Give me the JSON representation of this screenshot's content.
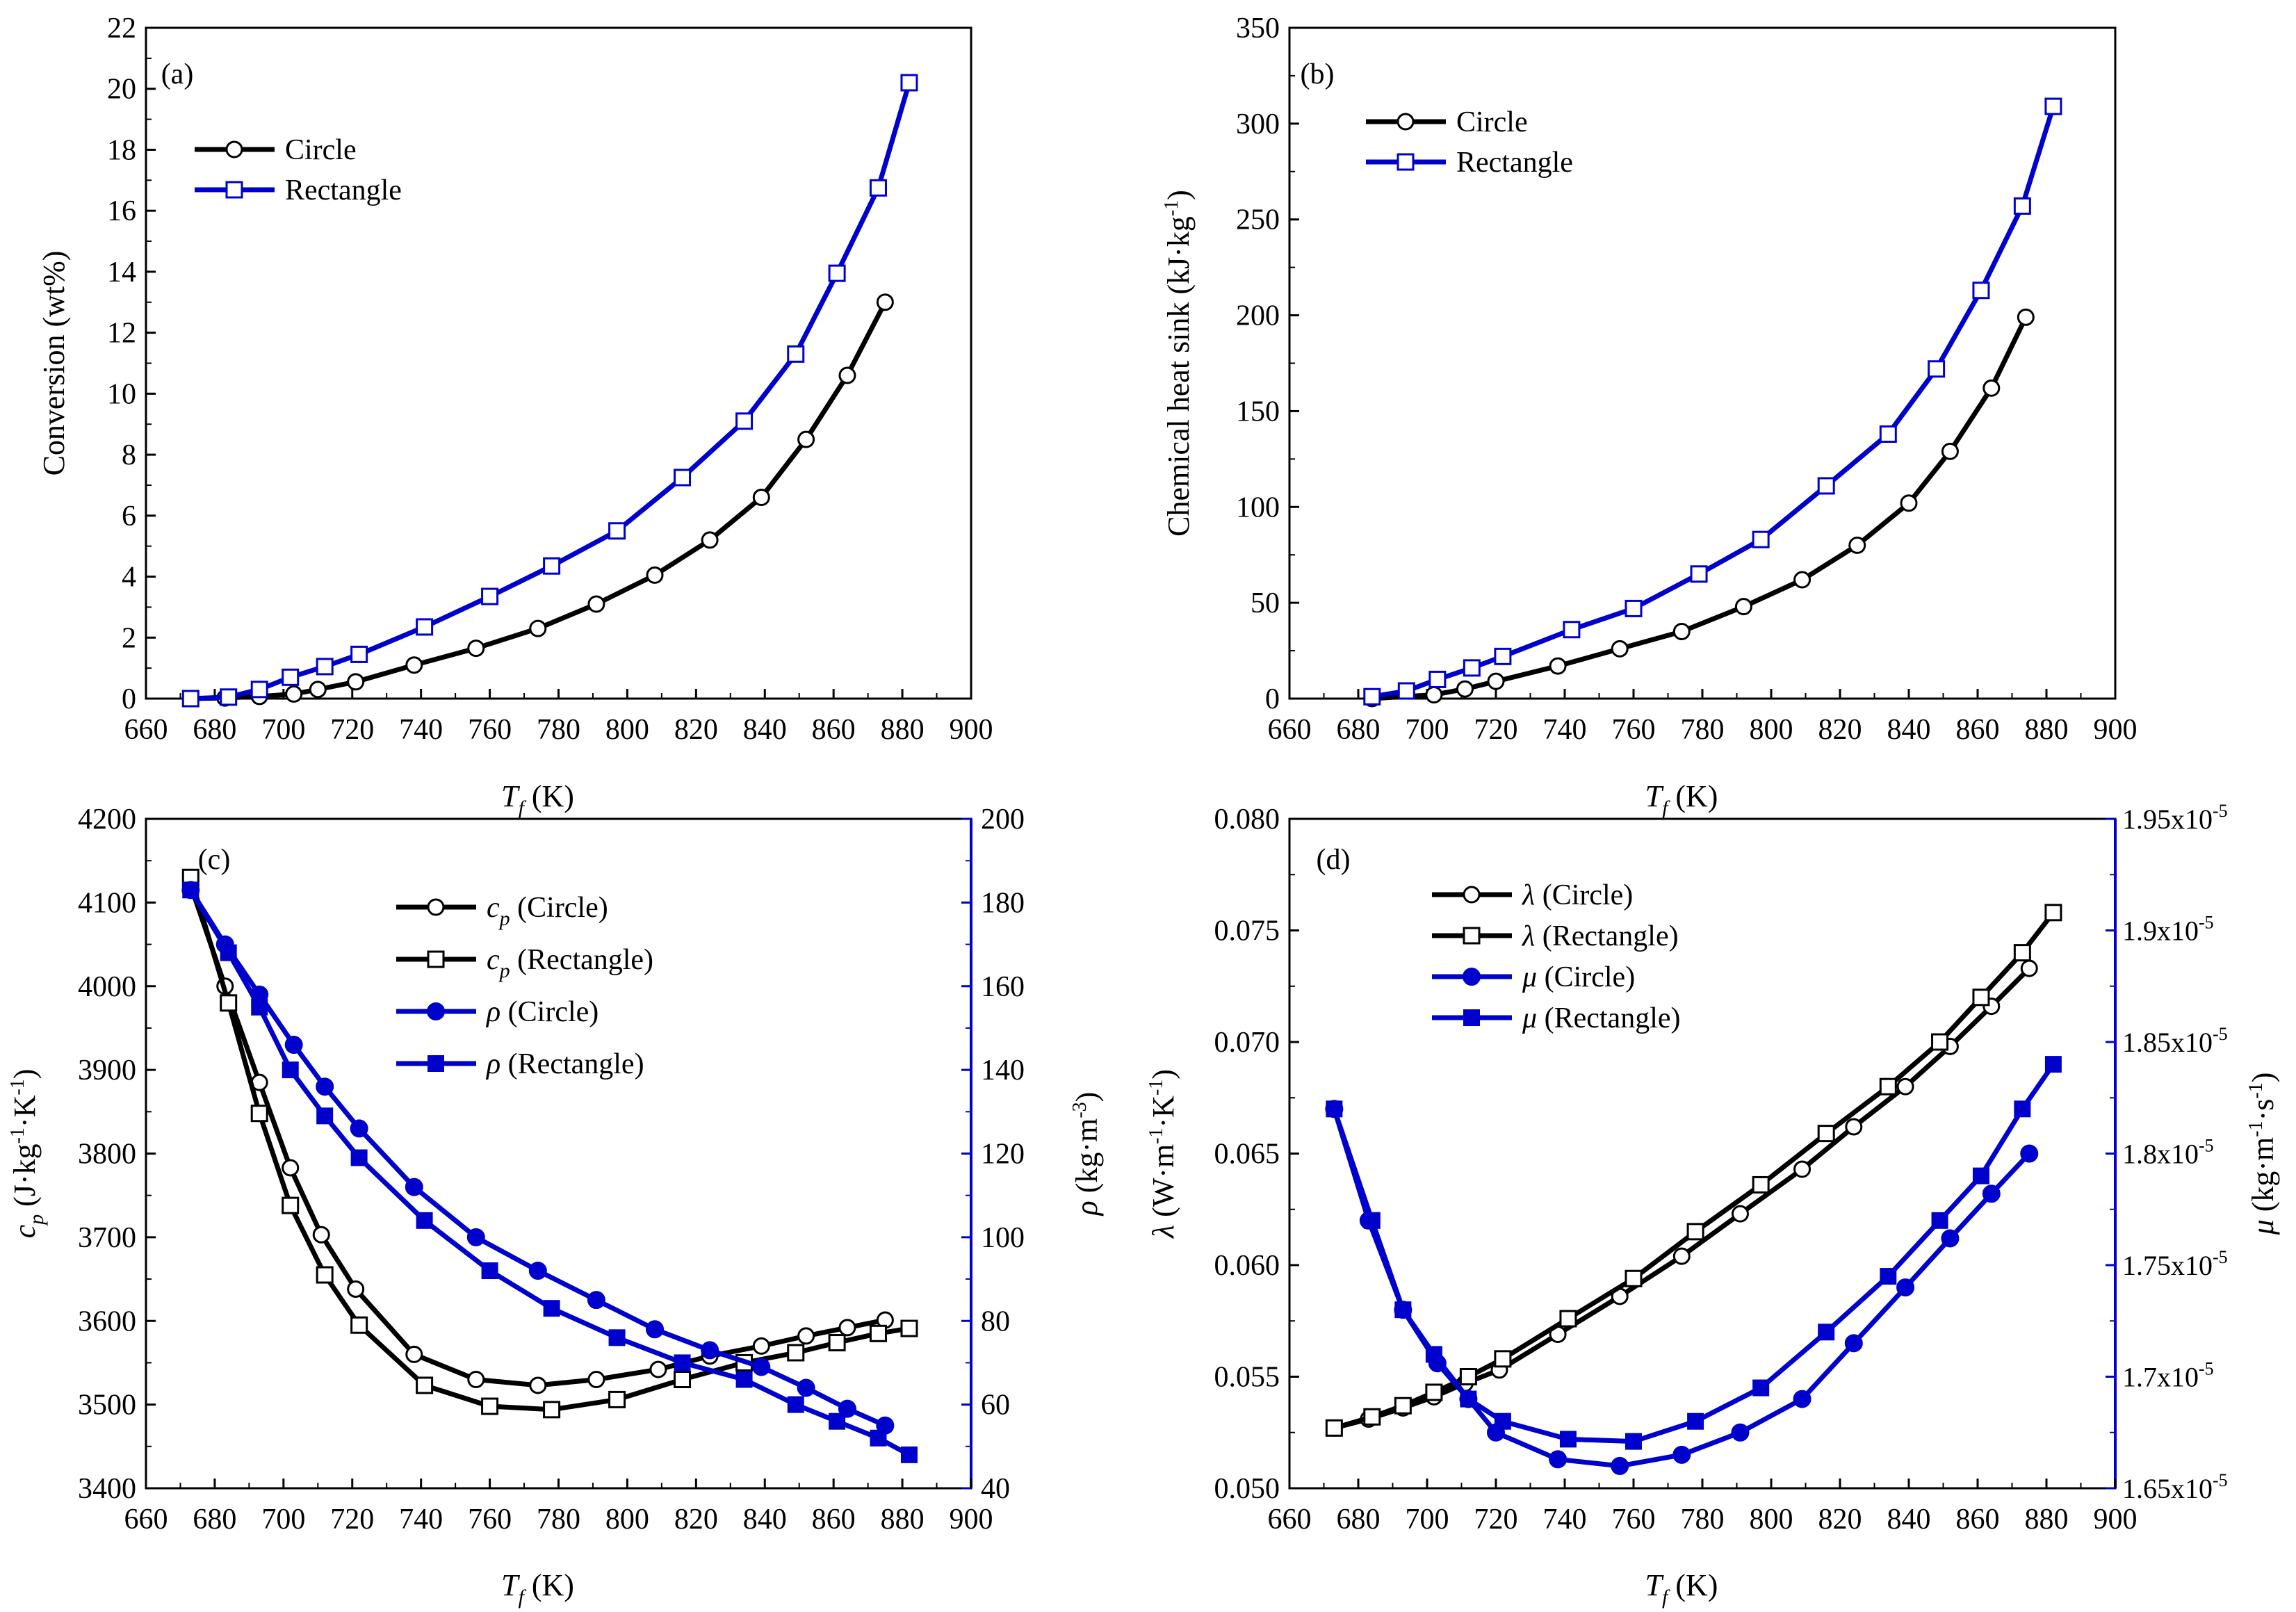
{
  "colors": {
    "black": "#000000",
    "blue": "#0000CC"
  },
  "chart_data": [
    {
      "id": "a",
      "type": "line",
      "panel_label": "(a)",
      "ylabel": "Conversion (wt%)",
      "xlabel": {
        "main": "T",
        "sub": "f",
        "unit": "(K)"
      },
      "x_ticks": [
        "660",
        "680",
        "700",
        "720",
        "740",
        "760",
        "780",
        "800",
        "820",
        "840",
        "860",
        "880",
        "900"
      ],
      "y_ticks": [
        "0",
        "2",
        "4",
        "6",
        "8",
        "10",
        "12",
        "14",
        "16",
        "18",
        "20",
        "22"
      ],
      "xlim": [
        660,
        900
      ],
      "ylim": [
        0,
        22
      ],
      "legend": [
        "Circle",
        "Rectangle"
      ],
      "series": [
        {
          "name": "Circle",
          "color": "#000000",
          "marker": "circle-open",
          "axis": "left",
          "x": [
            673,
            683,
            693,
            703,
            710,
            721,
            738,
            756,
            774,
            791,
            808,
            824,
            839,
            852,
            864,
            875
          ],
          "y": [
            0,
            0.02,
            0.07,
            0.15,
            0.3,
            0.55,
            1.1,
            1.65,
            2.3,
            3.1,
            4.05,
            5.2,
            6.6,
            8.5,
            10.6,
            13.0
          ]
        },
        {
          "name": "Rectangle",
          "color": "#0000CC",
          "marker": "square-open",
          "axis": "left",
          "x": [
            673,
            684,
            693,
            702,
            712,
            722,
            741,
            760,
            778,
            797,
            816,
            834,
            849,
            861,
            873,
            882
          ],
          "y": [
            0,
            0.05,
            0.3,
            0.7,
            1.05,
            1.45,
            2.35,
            3.35,
            4.35,
            5.5,
            7.25,
            9.1,
            11.3,
            13.95,
            16.75,
            20.2
          ]
        }
      ]
    },
    {
      "id": "b",
      "type": "line",
      "panel_label": "(b)",
      "ylabel": "Chemical heat sink  (kJ·kg",
      "ylabel_sup": "-1",
      "ylabel_end": ")",
      "xlabel": {
        "main": "T",
        "sub": "f",
        "unit": "(K)"
      },
      "x_ticks": [
        "660",
        "680",
        "700",
        "720",
        "740",
        "760",
        "780",
        "800",
        "820",
        "840",
        "860",
        "880",
        "900"
      ],
      "y_ticks": [
        "0",
        "50",
        "100",
        "150",
        "200",
        "250",
        "300",
        "350"
      ],
      "xlim": [
        660,
        900
      ],
      "ylim": [
        0,
        350
      ],
      "legend": [
        "Circle",
        "Rectangle"
      ],
      "series": [
        {
          "name": "Circle",
          "color": "#000000",
          "marker": "circle-open",
          "axis": "left",
          "x": [
            684,
            702,
            711,
            720,
            738,
            756,
            774,
            792,
            809,
            825,
            840,
            852,
            864,
            874
          ],
          "y": [
            0,
            2,
            5,
            9,
            17,
            26,
            35,
            48,
            62,
            80,
            102,
            129,
            162,
            199
          ]
        },
        {
          "name": "Rectangle",
          "color": "#0000CC",
          "marker": "square-open",
          "axis": "left",
          "x": [
            684,
            694,
            703,
            713,
            722,
            742,
            760,
            779,
            797,
            816,
            834,
            848,
            861,
            873,
            882
          ],
          "y": [
            1,
            4,
            10,
            16,
            22,
            36,
            47,
            65,
            83,
            111,
            138,
            172,
            213,
            257,
            309
          ]
        }
      ]
    },
    {
      "id": "c",
      "type": "line",
      "panel_label": "(c)",
      "ylabel": {
        "main": "c",
        "sub": "p",
        "rest": "  (J·kg",
        "sup1": "-1",
        "mid": "·K",
        "sup2": "-1",
        "end": ")"
      },
      "y2label": {
        "main": "ρ",
        "rest": "  (kg·m",
        "sup": "-3",
        "end": ")"
      },
      "xlabel": {
        "main": "T",
        "sub": "f",
        "unit": "(K)"
      },
      "x_ticks": [
        "660",
        "680",
        "700",
        "720",
        "740",
        "760",
        "780",
        "800",
        "820",
        "840",
        "860",
        "880",
        "900"
      ],
      "y_ticks": [
        "3400",
        "3500",
        "3600",
        "3700",
        "3800",
        "3900",
        "4000",
        "4100",
        "4200"
      ],
      "y2_ticks": [
        "40",
        "60",
        "80",
        "100",
        "120",
        "140",
        "160",
        "180",
        "200"
      ],
      "xlim": [
        660,
        900
      ],
      "ylim": [
        3400,
        4200
      ],
      "y2lim": [
        40,
        200
      ],
      "legend": [
        {
          "sym": "c",
          "sub": "p",
          "text": " (Circle)"
        },
        {
          "sym": "c",
          "sub": "p",
          "text": " (Rectangle)"
        },
        {
          "sym": "ρ",
          "sub": "",
          "text": "  (Circle)"
        },
        {
          "sym": "ρ",
          "sub": "",
          "text": "  (Rectangle)"
        }
      ],
      "series": [
        {
          "name": "cp (Circle)",
          "color": "#000000",
          "marker": "circle-open",
          "axis": "left",
          "x": [
            673,
            683,
            693,
            702,
            711,
            721,
            738,
            756,
            774,
            791,
            809,
            824,
            839,
            852,
            864,
            875
          ],
          "y": [
            4120,
            4000,
            3885,
            3783,
            3703,
            3638,
            3560,
            3530,
            3523,
            3530,
            3542,
            3558,
            3570,
            3582,
            3592,
            3601
          ]
        },
        {
          "name": "cp (Rectangle)",
          "color": "#000000",
          "marker": "square-open",
          "axis": "left",
          "x": [
            673,
            684,
            693,
            702,
            712,
            722,
            741,
            760,
            778,
            797,
            816,
            834,
            849,
            861,
            873,
            882
          ],
          "y": [
            4130,
            3980,
            3848,
            3738,
            3655,
            3595,
            3523,
            3498,
            3494,
            3506,
            3530,
            3550,
            3562,
            3574,
            3585,
            3591
          ]
        },
        {
          "name": "ρ (Circle)",
          "color": "#0000CC",
          "marker": "circle-filled",
          "axis": "right",
          "x": [
            673,
            683,
            693,
            703,
            712,
            722,
            738,
            756,
            774,
            791,
            808,
            824,
            839,
            852,
            864,
            875
          ],
          "y": [
            183,
            170,
            158,
            146,
            136,
            126,
            112,
            100,
            92,
            85,
            78,
            73,
            69,
            64,
            59,
            55
          ]
        },
        {
          "name": "ρ (Rectangle)",
          "color": "#0000CC",
          "marker": "square-filled",
          "axis": "right",
          "x": [
            673,
            684,
            693,
            702,
            712,
            722,
            741,
            760,
            778,
            797,
            816,
            834,
            849,
            861,
            873,
            882
          ],
          "y": [
            183,
            168,
            155,
            140,
            129,
            119,
            104,
            92,
            83,
            76,
            70,
            66,
            60,
            56,
            52,
            48
          ]
        }
      ]
    },
    {
      "id": "d",
      "type": "line",
      "panel_label": "(d)",
      "ylabel": {
        "main": "λ",
        "rest": " (W·m",
        "sup1": "-1",
        "mid": "·K",
        "sup2": "-1",
        "end": ")"
      },
      "y2label": {
        "main": "μ",
        "rest": "  (kg·m",
        "sup1": "-1",
        "mid": "·s",
        "sup2": "-1",
        "end": ")"
      },
      "xlabel": {
        "main": "T",
        "sub": "f",
        "unit": "(K)"
      },
      "x_ticks": [
        "660",
        "680",
        "700",
        "720",
        "740",
        "760",
        "780",
        "800",
        "820",
        "840",
        "860",
        "880",
        "900"
      ],
      "y_ticks": [
        "0.050",
        "0.055",
        "0.060",
        "0.065",
        "0.070",
        "0.075",
        "0.080"
      ],
      "y2_ticks": [
        {
          "base": "1.65x10",
          "exp": "-5"
        },
        {
          "base": "1.7x10",
          "exp": "-5"
        },
        {
          "base": "1.75x10",
          "exp": "-5"
        },
        {
          "base": "1.8x10",
          "exp": "-5"
        },
        {
          "base": "1.85x10",
          "exp": "-5"
        },
        {
          "base": "1.9x10",
          "exp": "-5"
        },
        {
          "base": "1.95x10",
          "exp": "-5"
        }
      ],
      "xlim": [
        660,
        900
      ],
      "ylim": [
        0.05,
        0.08
      ],
      "y2lim": [
        1.65e-05,
        1.95e-05
      ],
      "legend": [
        {
          "sym": "λ",
          "text": " (Circle)"
        },
        {
          "sym": "λ",
          "text": " (Rectangle)"
        },
        {
          "sym": "μ",
          "text": "  (Circle)"
        },
        {
          "sym": "μ",
          "text": "  (Rectangle)"
        }
      ],
      "series": [
        {
          "name": "λ (Circle)",
          "color": "#000000",
          "marker": "circle-open",
          "axis": "left",
          "x": [
            673,
            683,
            693,
            702,
            711,
            721,
            738,
            756,
            774,
            791,
            809,
            824,
            839,
            852,
            864,
            875
          ],
          "y": [
            0.0527,
            0.0531,
            0.0536,
            0.0541,
            0.0547,
            0.0553,
            0.0569,
            0.0586,
            0.0604,
            0.0623,
            0.0643,
            0.0662,
            0.068,
            0.0698,
            0.0716,
            0.0733
          ]
        },
        {
          "name": "λ (Rectangle)",
          "color": "#000000",
          "marker": "square-open",
          "axis": "left",
          "x": [
            673,
            684,
            693,
            702,
            712,
            722,
            741,
            760,
            778,
            797,
            816,
            834,
            849,
            861,
            873,
            882
          ],
          "y": [
            0.0527,
            0.0532,
            0.0537,
            0.0543,
            0.055,
            0.0558,
            0.0576,
            0.0594,
            0.0615,
            0.0636,
            0.0659,
            0.068,
            0.07,
            0.072,
            0.074,
            0.0758
          ]
        },
        {
          "name": "μ (Circle)",
          "color": "#0000CC",
          "marker": "circle-filled",
          "axis": "right",
          "x": [
            673,
            683,
            693,
            703,
            712,
            720,
            738,
            756,
            774,
            791,
            809,
            824,
            839,
            852,
            864,
            875
          ],
          "y": [
            1.82e-05,
            1.77e-05,
            1.73e-05,
            1.706e-05,
            1.69e-05,
            1.675e-05,
            1.663e-05,
            1.66e-05,
            1.665e-05,
            1.675e-05,
            1.69e-05,
            1.715e-05,
            1.74e-05,
            1.762e-05,
            1.782e-05,
            1.8e-05
          ]
        },
        {
          "name": "μ (Rectangle)",
          "color": "#0000CC",
          "marker": "square-filled",
          "axis": "right",
          "x": [
            673,
            684,
            693,
            702,
            712,
            722,
            741,
            760,
            778,
            797,
            816,
            834,
            849,
            861,
            873,
            882
          ],
          "y": [
            1.82e-05,
            1.77e-05,
            1.73e-05,
            1.71e-05,
            1.69e-05,
            1.68e-05,
            1.672e-05,
            1.671e-05,
            1.68e-05,
            1.695e-05,
            1.72e-05,
            1.745e-05,
            1.77e-05,
            1.79e-05,
            1.82e-05,
            1.84e-05
          ]
        }
      ]
    }
  ]
}
